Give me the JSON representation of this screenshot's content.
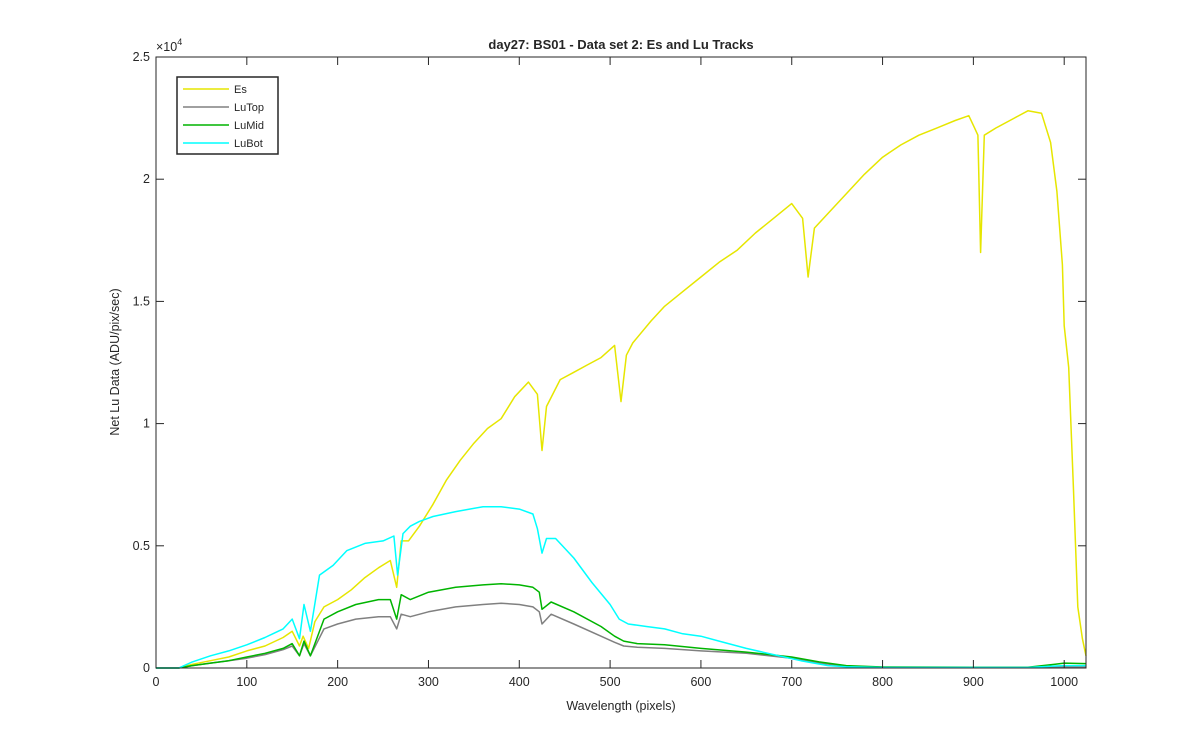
{
  "chart_data": {
    "type": "line",
    "title": "day27: BS01 - Data set 2: Es and Lu Tracks",
    "xlabel": "Wavelength (pixels)",
    "ylabel": "Net Lu Data (ADU/pix/sec)",
    "xlim": [
      0,
      1024
    ],
    "ylim": [
      0,
      25000
    ],
    "xticks": [
      0,
      100,
      200,
      300,
      400,
      500,
      600,
      700,
      800,
      900,
      1000
    ],
    "xtick_labels": [
      "0",
      "100",
      "200",
      "300",
      "400",
      "500",
      "600",
      "700",
      "800",
      "900",
      "1000"
    ],
    "yticks": [
      0,
      5000,
      10000,
      15000,
      20000,
      25000
    ],
    "ytick_labels": [
      "0",
      "0.5",
      "1",
      "1.5",
      "2",
      "2.5"
    ],
    "y_exponent_base": "×10",
    "y_exponent_power": "4",
    "grid": false,
    "legend_position": "top-left",
    "series": [
      {
        "name": "Es",
        "color": "#e6e600",
        "x": [
          0,
          25,
          40,
          60,
          80,
          100,
          120,
          140,
          150,
          158,
          162,
          168,
          175,
          185,
          200,
          215,
          230,
          245,
          258,
          265,
          270,
          278,
          290,
          305,
          320,
          335,
          350,
          365,
          380,
          395,
          410,
          420,
          425,
          430,
          445,
          460,
          475,
          490,
          505,
          512,
          518,
          525,
          545,
          560,
          580,
          600,
          620,
          640,
          660,
          680,
          700,
          712,
          718,
          725,
          745,
          760,
          780,
          800,
          820,
          840,
          860,
          880,
          895,
          900,
          905,
          908,
          912,
          925,
          945,
          960,
          975,
          985,
          992,
          998,
          1000,
          1005,
          1010,
          1015,
          1020,
          1024
        ],
        "y": [
          0,
          0,
          150,
          300,
          450,
          700,
          900,
          1250,
          1500,
          900,
          1300,
          800,
          1900,
          2500,
          2800,
          3200,
          3700,
          4100,
          4400,
          3300,
          5200,
          5200,
          5800,
          6700,
          7700,
          8500,
          9200,
          9800,
          10200,
          11100,
          11700,
          11200,
          8900,
          10700,
          11800,
          12100,
          12400,
          12700,
          13200,
          10900,
          12800,
          13300,
          14200,
          14800,
          15400,
          16000,
          16600,
          17100,
          17800,
          18400,
          19000,
          18400,
          16000,
          18000,
          18800,
          19400,
          20200,
          20900,
          21400,
          21800,
          22100,
          22400,
          22600,
          22200,
          21800,
          17000,
          21800,
          22100,
          22500,
          22800,
          22700,
          21500,
          19500,
          16500,
          14000,
          12300,
          7500,
          2500,
          1200,
          500
        ]
      },
      {
        "name": "LuTop",
        "color": "#808080",
        "x": [
          0,
          25,
          40,
          60,
          80,
          100,
          120,
          140,
          150,
          158,
          163,
          170,
          185,
          200,
          220,
          245,
          258,
          265,
          270,
          280,
          300,
          330,
          360,
          380,
          400,
          415,
          422,
          425,
          435,
          460,
          490,
          505,
          515,
          530,
          560,
          600,
          650,
          700,
          730,
          760,
          800,
          900,
          960,
          1000,
          1024
        ],
        "y": [
          0,
          0,
          100,
          200,
          300,
          400,
          550,
          750,
          900,
          500,
          1000,
          500,
          1600,
          1800,
          2000,
          2100,
          2100,
          1600,
          2200,
          2100,
          2300,
          2500,
          2600,
          2650,
          2600,
          2500,
          2300,
          1800,
          2200,
          1800,
          1300,
          1050,
          900,
          850,
          800,
          700,
          600,
          400,
          200,
          80,
          30,
          20,
          20,
          50,
          40
        ]
      },
      {
        "name": "LuMid",
        "color": "#00b400",
        "x": [
          0,
          25,
          40,
          60,
          80,
          100,
          120,
          140,
          150,
          158,
          163,
          170,
          185,
          200,
          220,
          245,
          258,
          265,
          270,
          280,
          300,
          330,
          360,
          380,
          400,
          415,
          422,
          425,
          435,
          460,
          490,
          505,
          515,
          530,
          560,
          600,
          650,
          700,
          730,
          760,
          800,
          900,
          960,
          990,
          1000,
          1024
        ],
        "y": [
          0,
          0,
          100,
          200,
          300,
          450,
          600,
          800,
          1000,
          500,
          1100,
          500,
          2000,
          2300,
          2600,
          2800,
          2800,
          2000,
          3000,
          2800,
          3100,
          3300,
          3400,
          3450,
          3400,
          3300,
          3100,
          2400,
          2700,
          2300,
          1700,
          1300,
          1100,
          1000,
          950,
          800,
          650,
          450,
          250,
          100,
          40,
          30,
          30,
          150,
          200,
          180
        ]
      },
      {
        "name": "LuBot",
        "color": "#00ffff",
        "x": [
          0,
          25,
          40,
          60,
          80,
          100,
          120,
          140,
          150,
          158,
          163,
          170,
          180,
          195,
          210,
          230,
          250,
          262,
          266,
          272,
          280,
          290,
          305,
          330,
          360,
          380,
          400,
          415,
          420,
          425,
          430,
          440,
          460,
          480,
          500,
          510,
          520,
          540,
          560,
          580,
          600,
          620,
          650,
          680,
          710,
          740,
          760,
          800,
          900,
          960,
          990,
          1000,
          1024
        ],
        "y": [
          0,
          0,
          250,
          500,
          700,
          950,
          1250,
          1600,
          2000,
          1200,
          2600,
          1500,
          3800,
          4200,
          4800,
          5100,
          5200,
          5400,
          3800,
          5500,
          5800,
          6000,
          6200,
          6400,
          6600,
          6600,
          6500,
          6300,
          5700,
          4700,
          5300,
          5300,
          4500,
          3500,
          2600,
          2000,
          1800,
          1700,
          1600,
          1400,
          1300,
          1100,
          800,
          550,
          300,
          100,
          50,
          20,
          20,
          20,
          80,
          100,
          100
        ]
      }
    ]
  }
}
